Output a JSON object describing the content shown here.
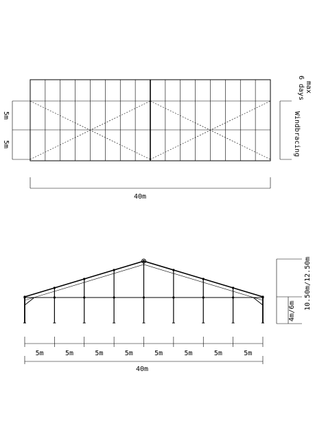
{
  "plan_view": {
    "width_dimension": "40m",
    "depth_dimensions": [
      "5m",
      "5m"
    ],
    "note_max_days": "max\n6 days",
    "note_windbracing": "Windbracing"
  },
  "elevation_view": {
    "bay_dimensions": [
      "5m",
      "5m",
      "5m",
      "5m",
      "5m",
      "5m",
      "5m",
      "5m"
    ],
    "total_width": "40m",
    "side_height": "4m/6m",
    "ridge_height": "10.50m/12.50m"
  }
}
